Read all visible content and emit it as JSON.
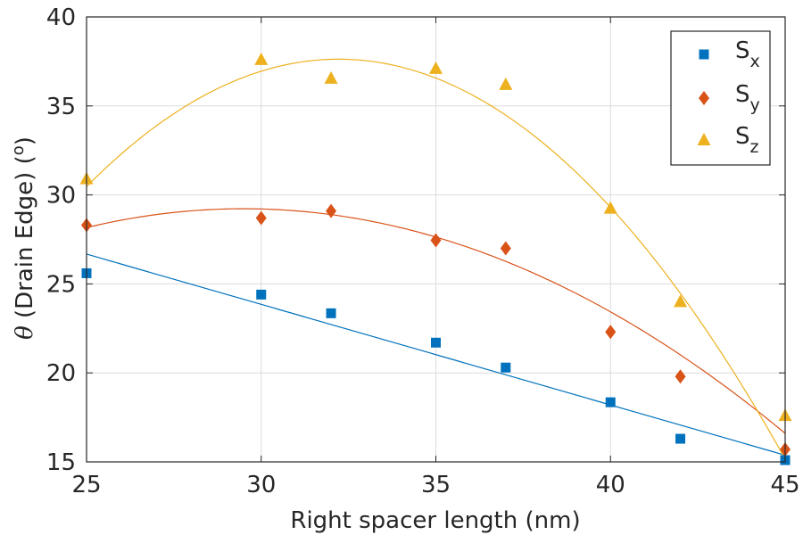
{
  "chart_data": {
    "type": "scatter",
    "xlabel": "Right spacer length (nm)",
    "ylabel_symbol": "θ",
    "ylabel": " (Drain Edge) (",
    "ylabel_sup": "o",
    "ylabel_end": ")",
    "xlim": [
      25,
      45
    ],
    "ylim": [
      15,
      40
    ],
    "xticks": [
      25,
      30,
      35,
      40,
      45
    ],
    "yticks": [
      15,
      20,
      25,
      30,
      35,
      40
    ],
    "grid": true,
    "legend_position": "top-right",
    "series": [
      {
        "name": "S",
        "name_sub": "x",
        "marker": "square",
        "color": "#0072BD",
        "x": [
          25,
          30,
          32,
          35,
          37,
          40,
          42,
          45
        ],
        "y": [
          25.6,
          24.4,
          23.35,
          21.7,
          20.3,
          18.35,
          16.3,
          15.1
        ],
        "fit": {
          "type": "poly",
          "coeffs": [
            -0.565,
            40.8
          ]
        }
      },
      {
        "name": "S",
        "name_sub": "y",
        "marker": "diamond",
        "color": "#D95319",
        "x": [
          25,
          30,
          32,
          35,
          37,
          40,
          42,
          45
        ],
        "y": [
          28.3,
          28.7,
          29.1,
          27.45,
          27.0,
          22.3,
          19.8,
          15.7
        ],
        "fit": {
          "type": "poly",
          "coeffs": [
            -0.0525,
            3.097,
            -16.45
          ]
        }
      },
      {
        "name": "S",
        "name_sub": "z",
        "marker": "triangle",
        "color": "#EDB120",
        "x": [
          25,
          30,
          32,
          35,
          37,
          40,
          42,
          45
        ],
        "y": [
          30.9,
          37.6,
          36.55,
          37.1,
          36.2,
          29.25,
          24.0,
          17.6
        ],
        "fit": {
          "type": "poly",
          "coeffs": [
            -0.1375,
            8.86,
            -105.1
          ]
        }
      }
    ]
  }
}
